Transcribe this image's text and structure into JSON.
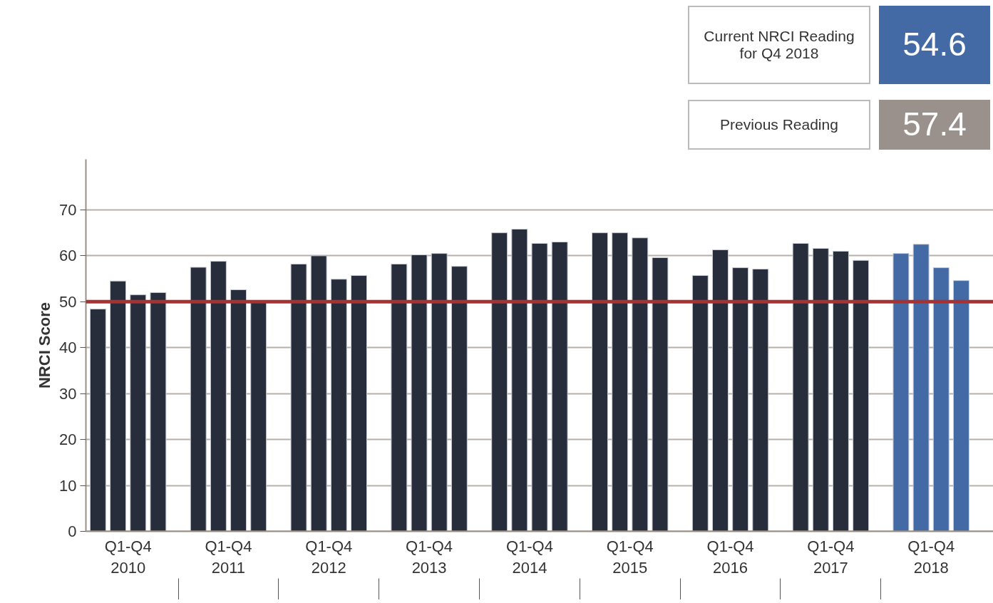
{
  "chart_data": {
    "type": "bar",
    "ylabel": "NRCI Score",
    "categories": [
      "Q1-Q4\n2010",
      "Q1-Q4\n2011",
      "Q1-Q4\n2012",
      "Q1-Q4\n2013",
      "Q1-Q4\n2014",
      "Q1-Q4\n2015",
      "Q1-Q4\n2016",
      "Q1-Q4\n2017",
      "Q1-Q4\n2018"
    ],
    "series": [
      {
        "colors": [
          "#272d3b",
          "#272d3b",
          "#272d3b",
          "#272d3b",
          "#272d3b",
          "#272d3b",
          "#272d3b",
          "#272d3b",
          "#436aa4"
        ],
        "values": [
          48.4,
          57.5,
          58.2,
          58.2,
          65.0,
          65.0,
          55.7,
          62.7,
          60.5
        ]
      },
      {
        "colors": [
          "#272d3b",
          "#272d3b",
          "#272d3b",
          "#272d3b",
          "#272d3b",
          "#272d3b",
          "#272d3b",
          "#272d3b",
          "#436aa4"
        ],
        "values": [
          54.5,
          58.8,
          60.0,
          60.2,
          65.8,
          65.0,
          61.3,
          61.6,
          62.5
        ]
      },
      {
        "colors": [
          "#272d3b",
          "#272d3b",
          "#272d3b",
          "#272d3b",
          "#272d3b",
          "#272d3b",
          "#272d3b",
          "#272d3b",
          "#436aa4"
        ],
        "values": [
          51.5,
          52.6,
          54.9,
          60.5,
          62.7,
          63.9,
          57.4,
          61.0,
          57.4
        ]
      },
      {
        "colors": [
          "#272d3b",
          "#272d3b",
          "#272d3b",
          "#272d3b",
          "#272d3b",
          "#272d3b",
          "#272d3b",
          "#272d3b",
          "#436aa4"
        ],
        "values": [
          52.0,
          50.0,
          55.7,
          57.7,
          63.0,
          59.6,
          57.1,
          59.0,
          54.6
        ]
      }
    ],
    "ylim": [
      0,
      81
    ],
    "yticks": [
      0,
      10,
      20,
      30,
      40,
      50,
      60,
      70
    ],
    "grid": "y",
    "ref_lines": [
      {
        "axis": "y",
        "value": 50,
        "color": "#a83232"
      }
    ],
    "annotations": [
      "Current NRCI Reading for Q4 2018",
      "54.6",
      "Previous Reading",
      "57.4"
    ]
  }
}
